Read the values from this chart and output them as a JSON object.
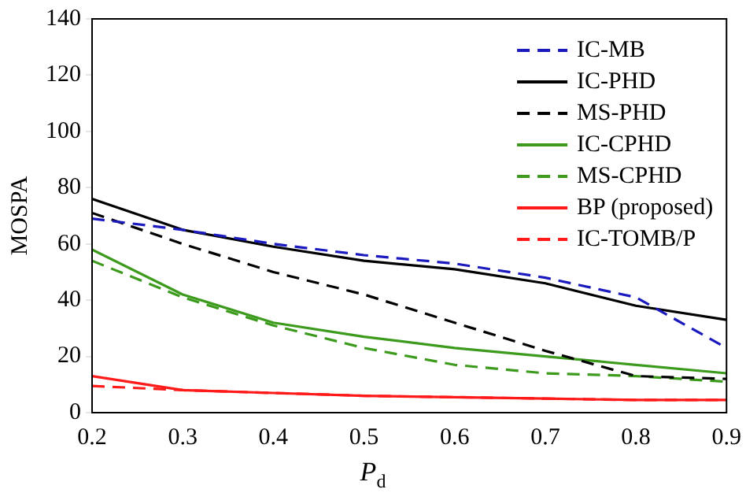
{
  "chart_data": {
    "type": "line",
    "xlabel": "P$_{d}$",
    "ylabel": "MOSPA",
    "x": [
      0.2,
      0.3,
      0.4,
      0.5,
      0.6,
      0.7,
      0.8,
      0.9
    ],
    "xlim": [
      0.2,
      0.9
    ],
    "xticks": [
      0.2,
      0.3,
      0.4,
      0.5,
      0.6,
      0.7,
      0.8,
      0.9
    ],
    "ylim": [
      0,
      140
    ],
    "yticks": [
      0,
      20,
      40,
      60,
      80,
      100,
      120,
      140
    ],
    "grid": false,
    "legend": "top right",
    "marker": "none",
    "series": [
      {
        "name": "IC-MB",
        "color": "#1a1abf",
        "line_style": "dashed",
        "values": [
          69,
          65,
          60,
          56,
          53,
          48,
          41,
          23
        ]
      },
      {
        "name": "IC-PHD",
        "color": "#000000",
        "line_style": "solid",
        "values": [
          76,
          65,
          59,
          54,
          51,
          46,
          38,
          33
        ]
      },
      {
        "name": "MS-PHD",
        "color": "#000000",
        "line_style": "dashed",
        "values": [
          71,
          60,
          50,
          42,
          32,
          22,
          13,
          12
        ]
      },
      {
        "name": "IC-CPHD",
        "color": "#3c9a1c",
        "line_style": "solid",
        "values": [
          58,
          42,
          32,
          27,
          23,
          20,
          17,
          14
        ]
      },
      {
        "name": "MS-CPHD",
        "color": "#3c9a1c",
        "line_style": "dashed",
        "values": [
          54,
          41,
          31,
          23,
          17,
          14,
          13,
          11
        ]
      },
      {
        "name": "BP (proposed)",
        "color": "#ff1a1a",
        "line_style": "solid",
        "values": [
          13,
          8,
          7,
          6,
          5.5,
          5,
          4.5,
          4.5
        ]
      },
      {
        "name": "IC-TOMB/P",
        "color": "#ff1a1a",
        "line_style": "dashed",
        "values": [
          9.5,
          8,
          7,
          6,
          5.5,
          5,
          4.5,
          4.5
        ]
      }
    ]
  }
}
